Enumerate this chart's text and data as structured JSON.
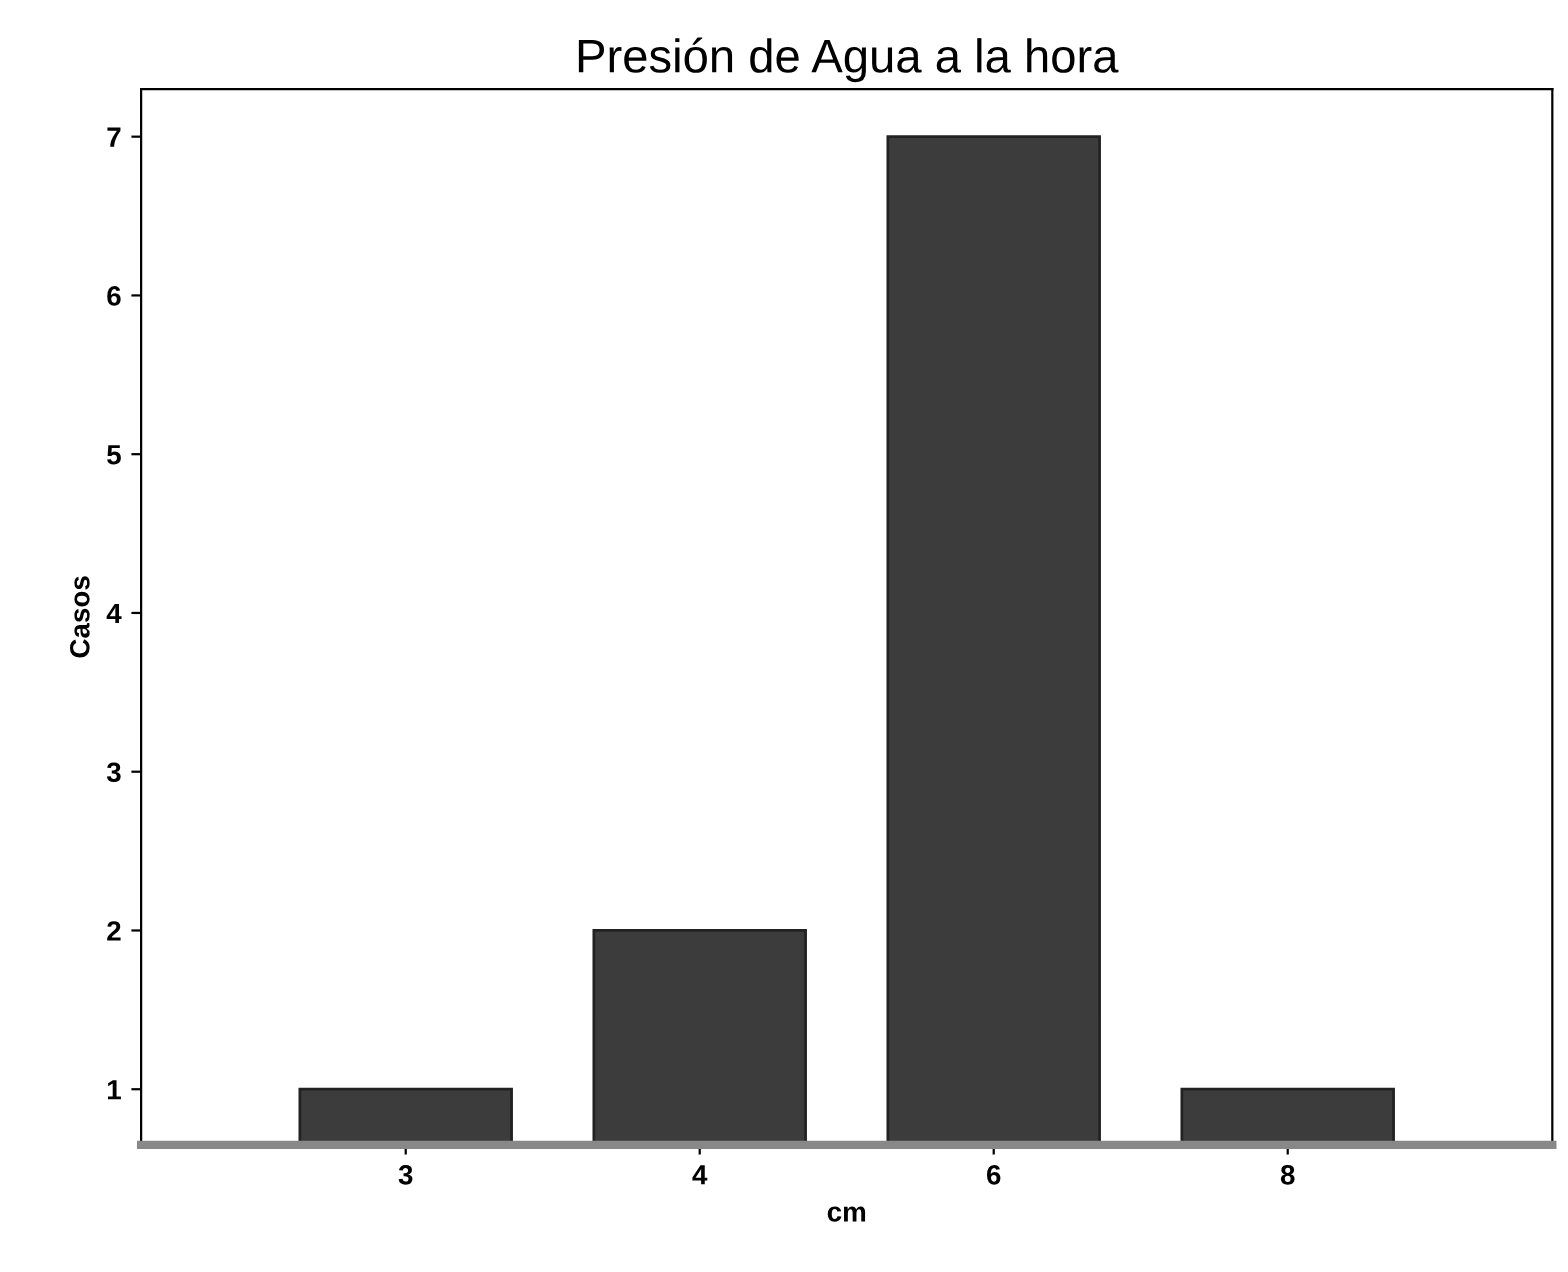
{
  "chart_data": {
    "type": "bar",
    "title": "Presión de Agua a la hora",
    "xlabel": "cm",
    "ylabel": "Casos",
    "categories": [
      "3",
      "4",
      "6",
      "8"
    ],
    "values": [
      1,
      2,
      7,
      1
    ],
    "color": "#3c3c3c",
    "ylim": [
      0.65,
      7.3
    ],
    "yticks": [
      1,
      2,
      3,
      4,
      5,
      6,
      7
    ],
    "grid": false
  }
}
